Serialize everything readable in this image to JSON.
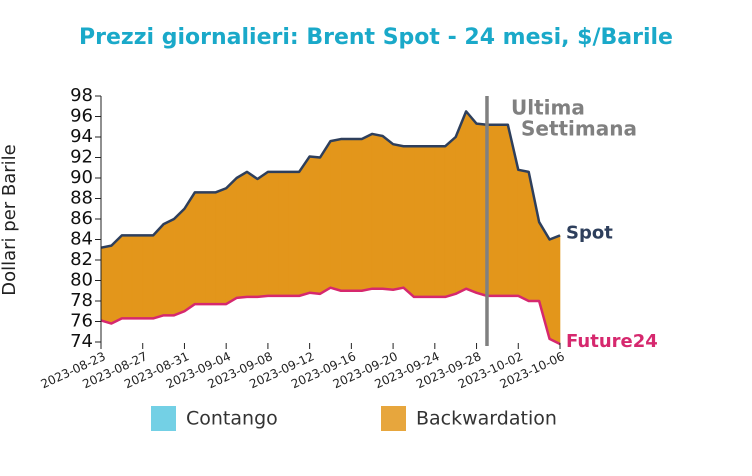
{
  "chart_data": {
    "type": "area",
    "title": "Prezzi giornalieri: Brent Spot - 24 mesi, $/Barile",
    "y_label": "Dollari per Barile",
    "x": [
      "2023-08-23",
      "2023-08-24",
      "2023-08-25",
      "2023-08-26",
      "2023-08-27",
      "2023-08-28",
      "2023-08-29",
      "2023-08-30",
      "2023-08-31",
      "2023-09-01",
      "2023-09-02",
      "2023-09-03",
      "2023-09-04",
      "2023-09-05",
      "2023-09-06",
      "2023-09-07",
      "2023-09-08",
      "2023-09-09",
      "2023-09-10",
      "2023-09-11",
      "2023-09-12",
      "2023-09-13",
      "2023-09-14",
      "2023-09-15",
      "2023-09-16",
      "2023-09-17",
      "2023-09-18",
      "2023-09-19",
      "2023-09-20",
      "2023-09-21",
      "2023-09-22",
      "2023-09-23",
      "2023-09-24",
      "2023-09-25",
      "2023-09-26",
      "2023-09-27",
      "2023-09-28",
      "2023-09-29",
      "2023-09-30",
      "2023-10-01",
      "2023-10-02",
      "2023-10-03",
      "2023-10-04",
      "2023-10-05",
      "2023-10-06"
    ],
    "xlim": [
      "2023-08-23",
      "2023-10-06"
    ],
    "xticks": [
      "2023-08-23",
      "2023-08-27",
      "2023-08-31",
      "2023-09-04",
      "2023-09-08",
      "2023-09-12",
      "2023-09-16",
      "2023-09-20",
      "2023-09-24",
      "2023-09-28",
      "2023-10-02",
      "2023-10-06"
    ],
    "ylim": [
      74,
      98
    ],
    "yticks": [
      74,
      76,
      78,
      80,
      82,
      84,
      86,
      88,
      90,
      92,
      94,
      96,
      98
    ],
    "series": [
      {
        "name": "Spot",
        "color": "#2e3f5c",
        "values": [
          83.2,
          83.4,
          84.4,
          84.4,
          84.4,
          84.4,
          85.5,
          86.0,
          87.0,
          88.6,
          88.6,
          88.6,
          89.0,
          90.0,
          90.6,
          89.9,
          90.6,
          90.6,
          90.6,
          90.6,
          92.1,
          92.0,
          93.6,
          93.8,
          93.8,
          93.8,
          94.3,
          94.1,
          93.3,
          93.1,
          93.1,
          93.1,
          93.1,
          93.1,
          94.0,
          96.5,
          95.3,
          95.2,
          95.2,
          95.2,
          90.8,
          90.6,
          85.7,
          84.0,
          84.4
        ]
      },
      {
        "name": "Future24",
        "color": "#d6286e",
        "values": [
          76.1,
          75.8,
          76.3,
          76.3,
          76.3,
          76.3,
          76.6,
          76.6,
          77.0,
          77.7,
          77.7,
          77.7,
          77.7,
          78.3,
          78.4,
          78.4,
          78.5,
          78.5,
          78.5,
          78.5,
          78.8,
          78.7,
          79.3,
          79.0,
          79.0,
          79.0,
          79.2,
          79.2,
          79.1,
          79.3,
          78.4,
          78.4,
          78.4,
          78.4,
          78.7,
          79.2,
          78.8,
          78.5,
          78.5,
          78.5,
          78.5,
          78.0,
          78.0,
          74.3,
          73.8
        ]
      }
    ],
    "fill_legend": [
      {
        "name": "Contango",
        "color": "#5bc8e0"
      },
      {
        "name": "Backwardation",
        "color": "#e3961b"
      }
    ],
    "marker_x": "2023-09-29",
    "marker_label": [
      "Ultima",
      "Settimana"
    ],
    "marker_color": "#808080"
  }
}
